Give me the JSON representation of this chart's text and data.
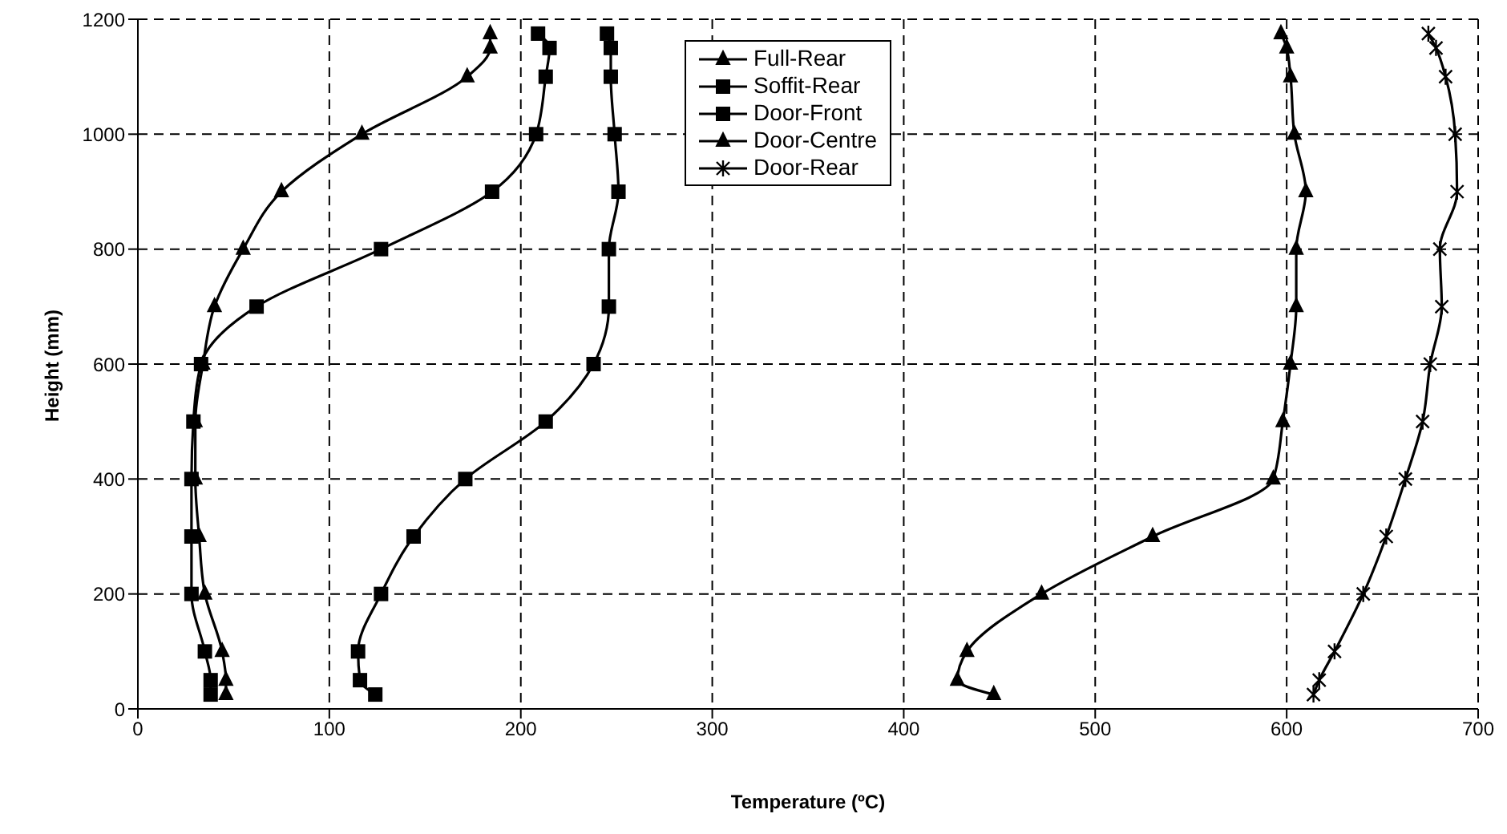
{
  "chart_data": {
    "type": "line",
    "xlabel": "Temperature (ºC)",
    "ylabel": "Height (mm)",
    "series": [
      {
        "name": "Full-Rear",
        "color": "#000000",
        "marker": "triangle",
        "x": [
          46,
          46,
          44,
          35,
          32,
          30,
          30,
          34,
          40,
          55,
          75,
          117,
          172,
          184,
          184
        ],
        "values": [
          25,
          50,
          100,
          200,
          300,
          400,
          500,
          600,
          700,
          800,
          900,
          1000,
          1100,
          1150,
          1175
        ]
      },
      {
        "name": "Soffit-Rear",
        "color": "#000000",
        "marker": "square",
        "x": [
          38,
          38,
          35,
          28,
          28,
          28,
          29,
          33,
          62,
          127,
          185,
          208,
          213,
          215,
          209
        ],
        "values": [
          25,
          50,
          100,
          200,
          300,
          400,
          500,
          600,
          700,
          800,
          900,
          1000,
          1100,
          1150,
          1175
        ]
      },
      {
        "name": "Door-Front",
        "color": "#000000",
        "marker": "square",
        "x": [
          124,
          116,
          115,
          127,
          144,
          171,
          213,
          238,
          246,
          246,
          251,
          249,
          247,
          247,
          245
        ],
        "values": [
          25,
          50,
          100,
          200,
          300,
          400,
          500,
          600,
          700,
          800,
          900,
          1000,
          1100,
          1150,
          1175
        ]
      },
      {
        "name": "Door-Centre",
        "color": "#000000",
        "marker": "triangle",
        "x": [
          447,
          428,
          433,
          472,
          530,
          593,
          598,
          602,
          605,
          605,
          610,
          604,
          602,
          600,
          597
        ],
        "values": [
          25,
          50,
          100,
          200,
          300,
          400,
          500,
          600,
          700,
          800,
          900,
          1000,
          1100,
          1150,
          1175
        ]
      },
      {
        "name": "Door-Rear",
        "color": "#000000",
        "marker": "cross",
        "x": [
          614,
          617,
          625,
          640,
          652,
          662,
          671,
          675,
          681,
          680,
          689,
          688,
          683,
          678,
          674
        ],
        "values": [
          25,
          50,
          100,
          200,
          300,
          400,
          500,
          600,
          700,
          800,
          900,
          1000,
          1100,
          1150,
          1175
        ]
      }
    ],
    "xlim": [
      0,
      700
    ],
    "xticks": [
      0,
      100,
      200,
      300,
      400,
      500,
      600,
      700
    ],
    "ylim": [
      0,
      1200
    ],
    "yticks": [
      0,
      200,
      400,
      600,
      800,
      1000,
      1200
    ],
    "grid": true,
    "legend": "top",
    "line_style": "solid"
  }
}
